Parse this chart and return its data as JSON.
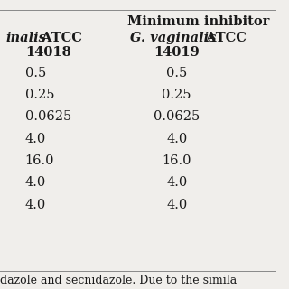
{
  "title": "Minimum inhibitor",
  "col1_italic": "inalis",
  "col1_bold": " ATCC",
  "col1_num": "14018",
  "col2_italic": "G. vaginalis",
  "col2_bold": " ATCC",
  "col2_num": "14019",
  "data": [
    [
      "0.5",
      "0.5"
    ],
    [
      "0.25",
      "0.25"
    ],
    [
      "0.0625",
      "0.0625"
    ],
    [
      "4.0",
      "4.0"
    ],
    [
      "16.0",
      "16.0"
    ],
    [
      "4.0",
      "4.0"
    ],
    [
      "4.0",
      "4.0"
    ]
  ],
  "footer": "dazole and secnidazole. Due to the simila",
  "background_color": "#f0eeeb",
  "text_color": "#1a1a1a",
  "line_color": "#888888",
  "data_fontsize": 10.5,
  "header_fontsize": 10.5,
  "footer_fontsize": 9.0,
  "title_fontsize": 10.5
}
